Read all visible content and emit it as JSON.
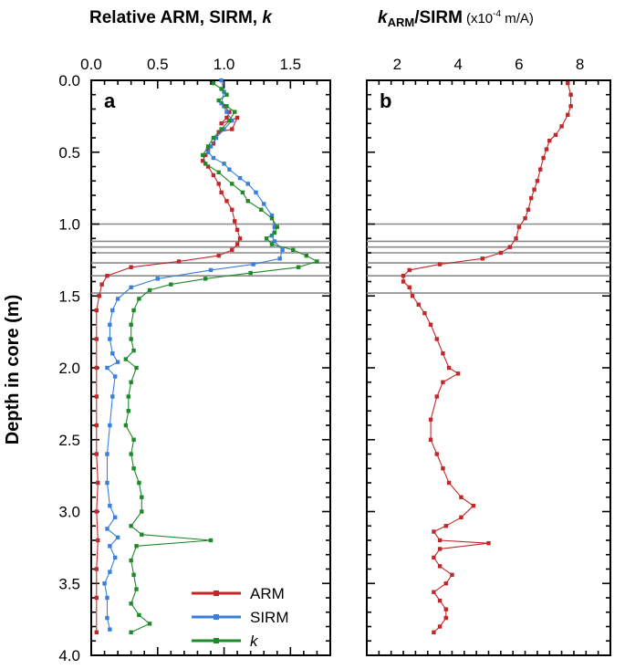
{
  "chart_data": [
    {
      "type": "line",
      "panel_label": "a",
      "title": {
        "prefix": "Relative ARM, SIRM, ",
        "italic": "k"
      },
      "ylabel": "Depth in core (m)",
      "xlim": [
        0,
        1.8
      ],
      "ylim": [
        0,
        4.0
      ],
      "y_inverted": true,
      "x_axis_position": "top",
      "x_ticks": [
        "0.0",
        "0.5",
        "1.0",
        "1.5"
      ],
      "y_ticks": [
        "0.0",
        "0.5",
        "1.0",
        "1.5",
        "2.0",
        "2.5",
        "3.0",
        "3.5",
        "4.0"
      ],
      "legend_placement": "bottom-center",
      "legend": [
        {
          "label": "ARM",
          "italic": false,
          "color": "#c0282a"
        },
        {
          "label": "SIRM",
          "italic": false,
          "color": "#3a7fdc"
        },
        {
          "label": "k",
          "italic": true,
          "color": "#1f8a2a"
        }
      ],
      "reference_depths": [
        1.0,
        1.12,
        1.16,
        1.2,
        1.27,
        1.36,
        1.48
      ],
      "series": [
        {
          "name": "ARM",
          "color": "#c0282a",
          "points": [
            [
              1.0,
              0.18
            ],
            [
              1.04,
              0.22
            ],
            [
              1.02,
              0.26
            ],
            [
              0.98,
              0.3
            ],
            [
              1.1,
              0.26
            ],
            [
              1.06,
              0.34
            ],
            [
              0.96,
              0.36
            ],
            [
              0.92,
              0.44
            ],
            [
              0.88,
              0.48
            ],
            [
              0.86,
              0.52
            ],
            [
              0.84,
              0.56
            ],
            [
              0.88,
              0.6
            ],
            [
              0.92,
              0.66
            ],
            [
              0.96,
              0.72
            ],
            [
              0.98,
              0.78
            ],
            [
              1.02,
              0.84
            ],
            [
              1.06,
              0.9
            ],
            [
              1.08,
              0.98
            ],
            [
              1.1,
              1.04
            ],
            [
              1.12,
              1.1
            ],
            [
              1.1,
              1.14
            ],
            [
              1.06,
              1.18
            ],
            [
              0.96,
              1.22
            ],
            [
              0.66,
              1.26
            ],
            [
              0.3,
              1.3
            ],
            [
              0.12,
              1.36
            ],
            [
              0.08,
              1.42
            ],
            [
              0.06,
              1.5
            ],
            [
              0.04,
              1.6
            ],
            [
              0.04,
              1.8
            ],
            [
              0.04,
              2.0
            ],
            [
              0.04,
              2.2
            ],
            [
              0.04,
              2.4
            ],
            [
              0.04,
              2.6
            ],
            [
              0.05,
              2.8
            ],
            [
              0.04,
              3.0
            ],
            [
              0.05,
              3.2
            ],
            [
              0.04,
              3.4
            ],
            [
              0.04,
              3.6
            ],
            [
              0.04,
              3.84
            ]
          ]
        },
        {
          "name": "SIRM",
          "color": "#3a7fdc",
          "points": [
            [
              0.98,
              0.0
            ],
            [
              1.0,
              0.08
            ],
            [
              0.98,
              0.16
            ],
            [
              1.02,
              0.22
            ],
            [
              1.06,
              0.28
            ],
            [
              1.0,
              0.34
            ],
            [
              0.94,
              0.4
            ],
            [
              0.9,
              0.46
            ],
            [
              0.88,
              0.5
            ],
            [
              0.92,
              0.54
            ],
            [
              1.0,
              0.58
            ],
            [
              1.04,
              0.62
            ],
            [
              1.12,
              0.68
            ],
            [
              1.18,
              0.72
            ],
            [
              1.24,
              0.78
            ],
            [
              1.3,
              0.86
            ],
            [
              1.36,
              0.94
            ],
            [
              1.38,
              1.02
            ],
            [
              1.36,
              1.08
            ],
            [
              1.38,
              1.12
            ],
            [
              1.44,
              1.18
            ],
            [
              1.42,
              1.24
            ],
            [
              1.22,
              1.28
            ],
            [
              0.9,
              1.32
            ],
            [
              0.5,
              1.38
            ],
            [
              0.3,
              1.44
            ],
            [
              0.2,
              1.52
            ],
            [
              0.16,
              1.6
            ],
            [
              0.14,
              1.7
            ],
            [
              0.14,
              1.8
            ],
            [
              0.16,
              1.9
            ],
            [
              0.2,
              1.96
            ],
            [
              0.12,
              2.0
            ],
            [
              0.18,
              2.06
            ],
            [
              0.16,
              2.2
            ],
            [
              0.14,
              2.4
            ],
            [
              0.12,
              2.6
            ],
            [
              0.12,
              2.8
            ],
            [
              0.14,
              2.96
            ],
            [
              0.18,
              3.04
            ],
            [
              0.12,
              3.12
            ],
            [
              0.2,
              3.18
            ],
            [
              0.14,
              3.24
            ],
            [
              0.18,
              3.32
            ],
            [
              0.14,
              3.42
            ],
            [
              0.1,
              3.5
            ],
            [
              0.12,
              3.6
            ],
            [
              0.12,
              3.74
            ],
            [
              0.14,
              3.82
            ]
          ]
        },
        {
          "name": "k",
          "color": "#1f8a2a",
          "points": [
            [
              0.92,
              0.02
            ],
            [
              0.98,
              0.06
            ],
            [
              1.02,
              0.1
            ],
            [
              0.96,
              0.14
            ],
            [
              1.02,
              0.18
            ],
            [
              1.08,
              0.22
            ],
            [
              1.04,
              0.28
            ],
            [
              0.98,
              0.34
            ],
            [
              0.92,
              0.4
            ],
            [
              0.88,
              0.46
            ],
            [
              0.84,
              0.52
            ],
            [
              0.86,
              0.58
            ],
            [
              0.96,
              0.64
            ],
            [
              1.06,
              0.72
            ],
            [
              1.14,
              0.78
            ],
            [
              1.18,
              0.84
            ],
            [
              1.28,
              0.9
            ],
            [
              1.36,
              0.96
            ],
            [
              1.4,
              1.02
            ],
            [
              1.38,
              1.06
            ],
            [
              1.32,
              1.1
            ],
            [
              1.36,
              1.14
            ],
            [
              1.52,
              1.18
            ],
            [
              1.62,
              1.22
            ],
            [
              1.7,
              1.26
            ],
            [
              1.56,
              1.3
            ],
            [
              1.2,
              1.34
            ],
            [
              0.86,
              1.38
            ],
            [
              0.6,
              1.42
            ],
            [
              0.44,
              1.46
            ],
            [
              0.36,
              1.52
            ],
            [
              0.32,
              1.6
            ],
            [
              0.3,
              1.7
            ],
            [
              0.3,
              1.8
            ],
            [
              0.32,
              1.88
            ],
            [
              0.26,
              1.94
            ],
            [
              0.34,
              2.0
            ],
            [
              0.3,
              2.1
            ],
            [
              0.28,
              2.2
            ],
            [
              0.28,
              2.3
            ],
            [
              0.26,
              2.4
            ],
            [
              0.32,
              2.5
            ],
            [
              0.3,
              2.6
            ],
            [
              0.32,
              2.7
            ],
            [
              0.36,
              2.8
            ],
            [
              0.38,
              2.9
            ],
            [
              0.38,
              3.0
            ],
            [
              0.3,
              3.1
            ],
            [
              0.38,
              3.16
            ],
            [
              0.9,
              3.2
            ],
            [
              0.34,
              3.24
            ],
            [
              0.3,
              3.34
            ],
            [
              0.32,
              3.44
            ],
            [
              0.34,
              3.54
            ],
            [
              0.3,
              3.64
            ],
            [
              0.36,
              3.72
            ],
            [
              0.44,
              3.78
            ],
            [
              0.3,
              3.84
            ]
          ]
        }
      ]
    },
    {
      "type": "line",
      "panel_label": "b",
      "title": {
        "italic": "k",
        "sub": "ARM",
        "rest": "/SIRM",
        "unit_prefix": "(x10",
        "unit_exp": "-4",
        "unit_suffix": " m/A)"
      },
      "xlim": [
        1.0,
        9.0
      ],
      "ylim": [
        0,
        4.0
      ],
      "y_inverted": true,
      "x_axis_position": "top",
      "x_ticks": [
        "2",
        "4",
        "6",
        "8"
      ],
      "reference_depths": [
        1.0,
        1.12,
        1.16,
        1.2,
        1.27,
        1.36,
        1.48
      ],
      "series": [
        {
          "name": "",
          "color": "#c0282a",
          "points": [
            [
              7.6,
              0.02
            ],
            [
              7.7,
              0.1
            ],
            [
              7.7,
              0.18
            ],
            [
              7.6,
              0.24
            ],
            [
              7.4,
              0.32
            ],
            [
              7.2,
              0.38
            ],
            [
              7.0,
              0.42
            ],
            [
              6.9,
              0.48
            ],
            [
              6.8,
              0.54
            ],
            [
              6.7,
              0.62
            ],
            [
              6.6,
              0.7
            ],
            [
              6.5,
              0.76
            ],
            [
              6.4,
              0.82
            ],
            [
              6.3,
              0.9
            ],
            [
              6.2,
              0.96
            ],
            [
              6.0,
              1.02
            ],
            [
              5.9,
              1.1
            ],
            [
              5.7,
              1.16
            ],
            [
              5.4,
              1.2
            ],
            [
              4.8,
              1.24
            ],
            [
              3.4,
              1.28
            ],
            [
              2.4,
              1.32
            ],
            [
              2.2,
              1.36
            ],
            [
              2.2,
              1.4
            ],
            [
              2.4,
              1.44
            ],
            [
              2.5,
              1.5
            ],
            [
              2.7,
              1.56
            ],
            [
              2.9,
              1.62
            ],
            [
              3.1,
              1.7
            ],
            [
              3.3,
              1.8
            ],
            [
              3.5,
              1.9
            ],
            [
              3.7,
              2.0
            ],
            [
              4.0,
              2.04
            ],
            [
              3.5,
              2.1
            ],
            [
              3.3,
              2.2
            ],
            [
              3.1,
              2.36
            ],
            [
              3.1,
              2.5
            ],
            [
              3.3,
              2.6
            ],
            [
              3.5,
              2.7
            ],
            [
              3.7,
              2.8
            ],
            [
              4.1,
              2.9
            ],
            [
              4.5,
              2.96
            ],
            [
              4.1,
              3.04
            ],
            [
              3.6,
              3.1
            ],
            [
              3.2,
              3.14
            ],
            [
              3.4,
              3.2
            ],
            [
              5.0,
              3.22
            ],
            [
              3.4,
              3.26
            ],
            [
              3.2,
              3.32
            ],
            [
              3.4,
              3.38
            ],
            [
              3.8,
              3.44
            ],
            [
              3.6,
              3.5
            ],
            [
              3.2,
              3.56
            ],
            [
              3.4,
              3.62
            ],
            [
              3.6,
              3.68
            ],
            [
              3.6,
              3.74
            ],
            [
              3.4,
              3.8
            ],
            [
              3.2,
              3.84
            ]
          ]
        }
      ]
    }
  ]
}
